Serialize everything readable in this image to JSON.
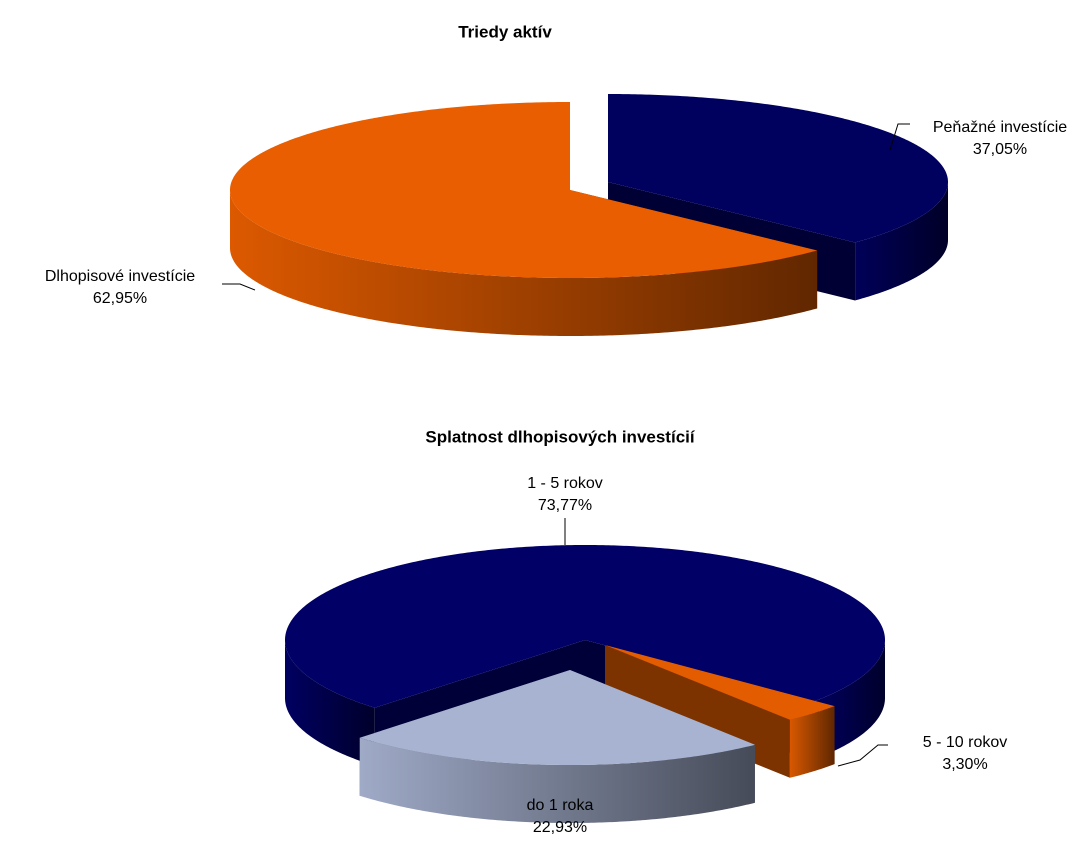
{
  "chart_data": [
    {
      "type": "pie",
      "title": "Triedy aktív",
      "categories": [
        "Peňažné investície",
        "Dlhopisové investície"
      ],
      "values": [
        37.05,
        62.95
      ],
      "value_labels": [
        "37,05%",
        "62,95%"
      ],
      "colors": [
        "#00005e",
        "#e85e00"
      ]
    },
    {
      "type": "pie",
      "title": "Splatnost dlhopisových investícií",
      "categories": [
        "1 - 5 rokov",
        "5 - 10 rokov",
        "do 1 roka"
      ],
      "values": [
        73.77,
        3.3,
        22.93
      ],
      "value_labels": [
        "73,77%",
        "3,30%",
        "22,93%"
      ],
      "colors": [
        "#000066",
        "#e35d00",
        "#a7b3d1"
      ]
    }
  ]
}
